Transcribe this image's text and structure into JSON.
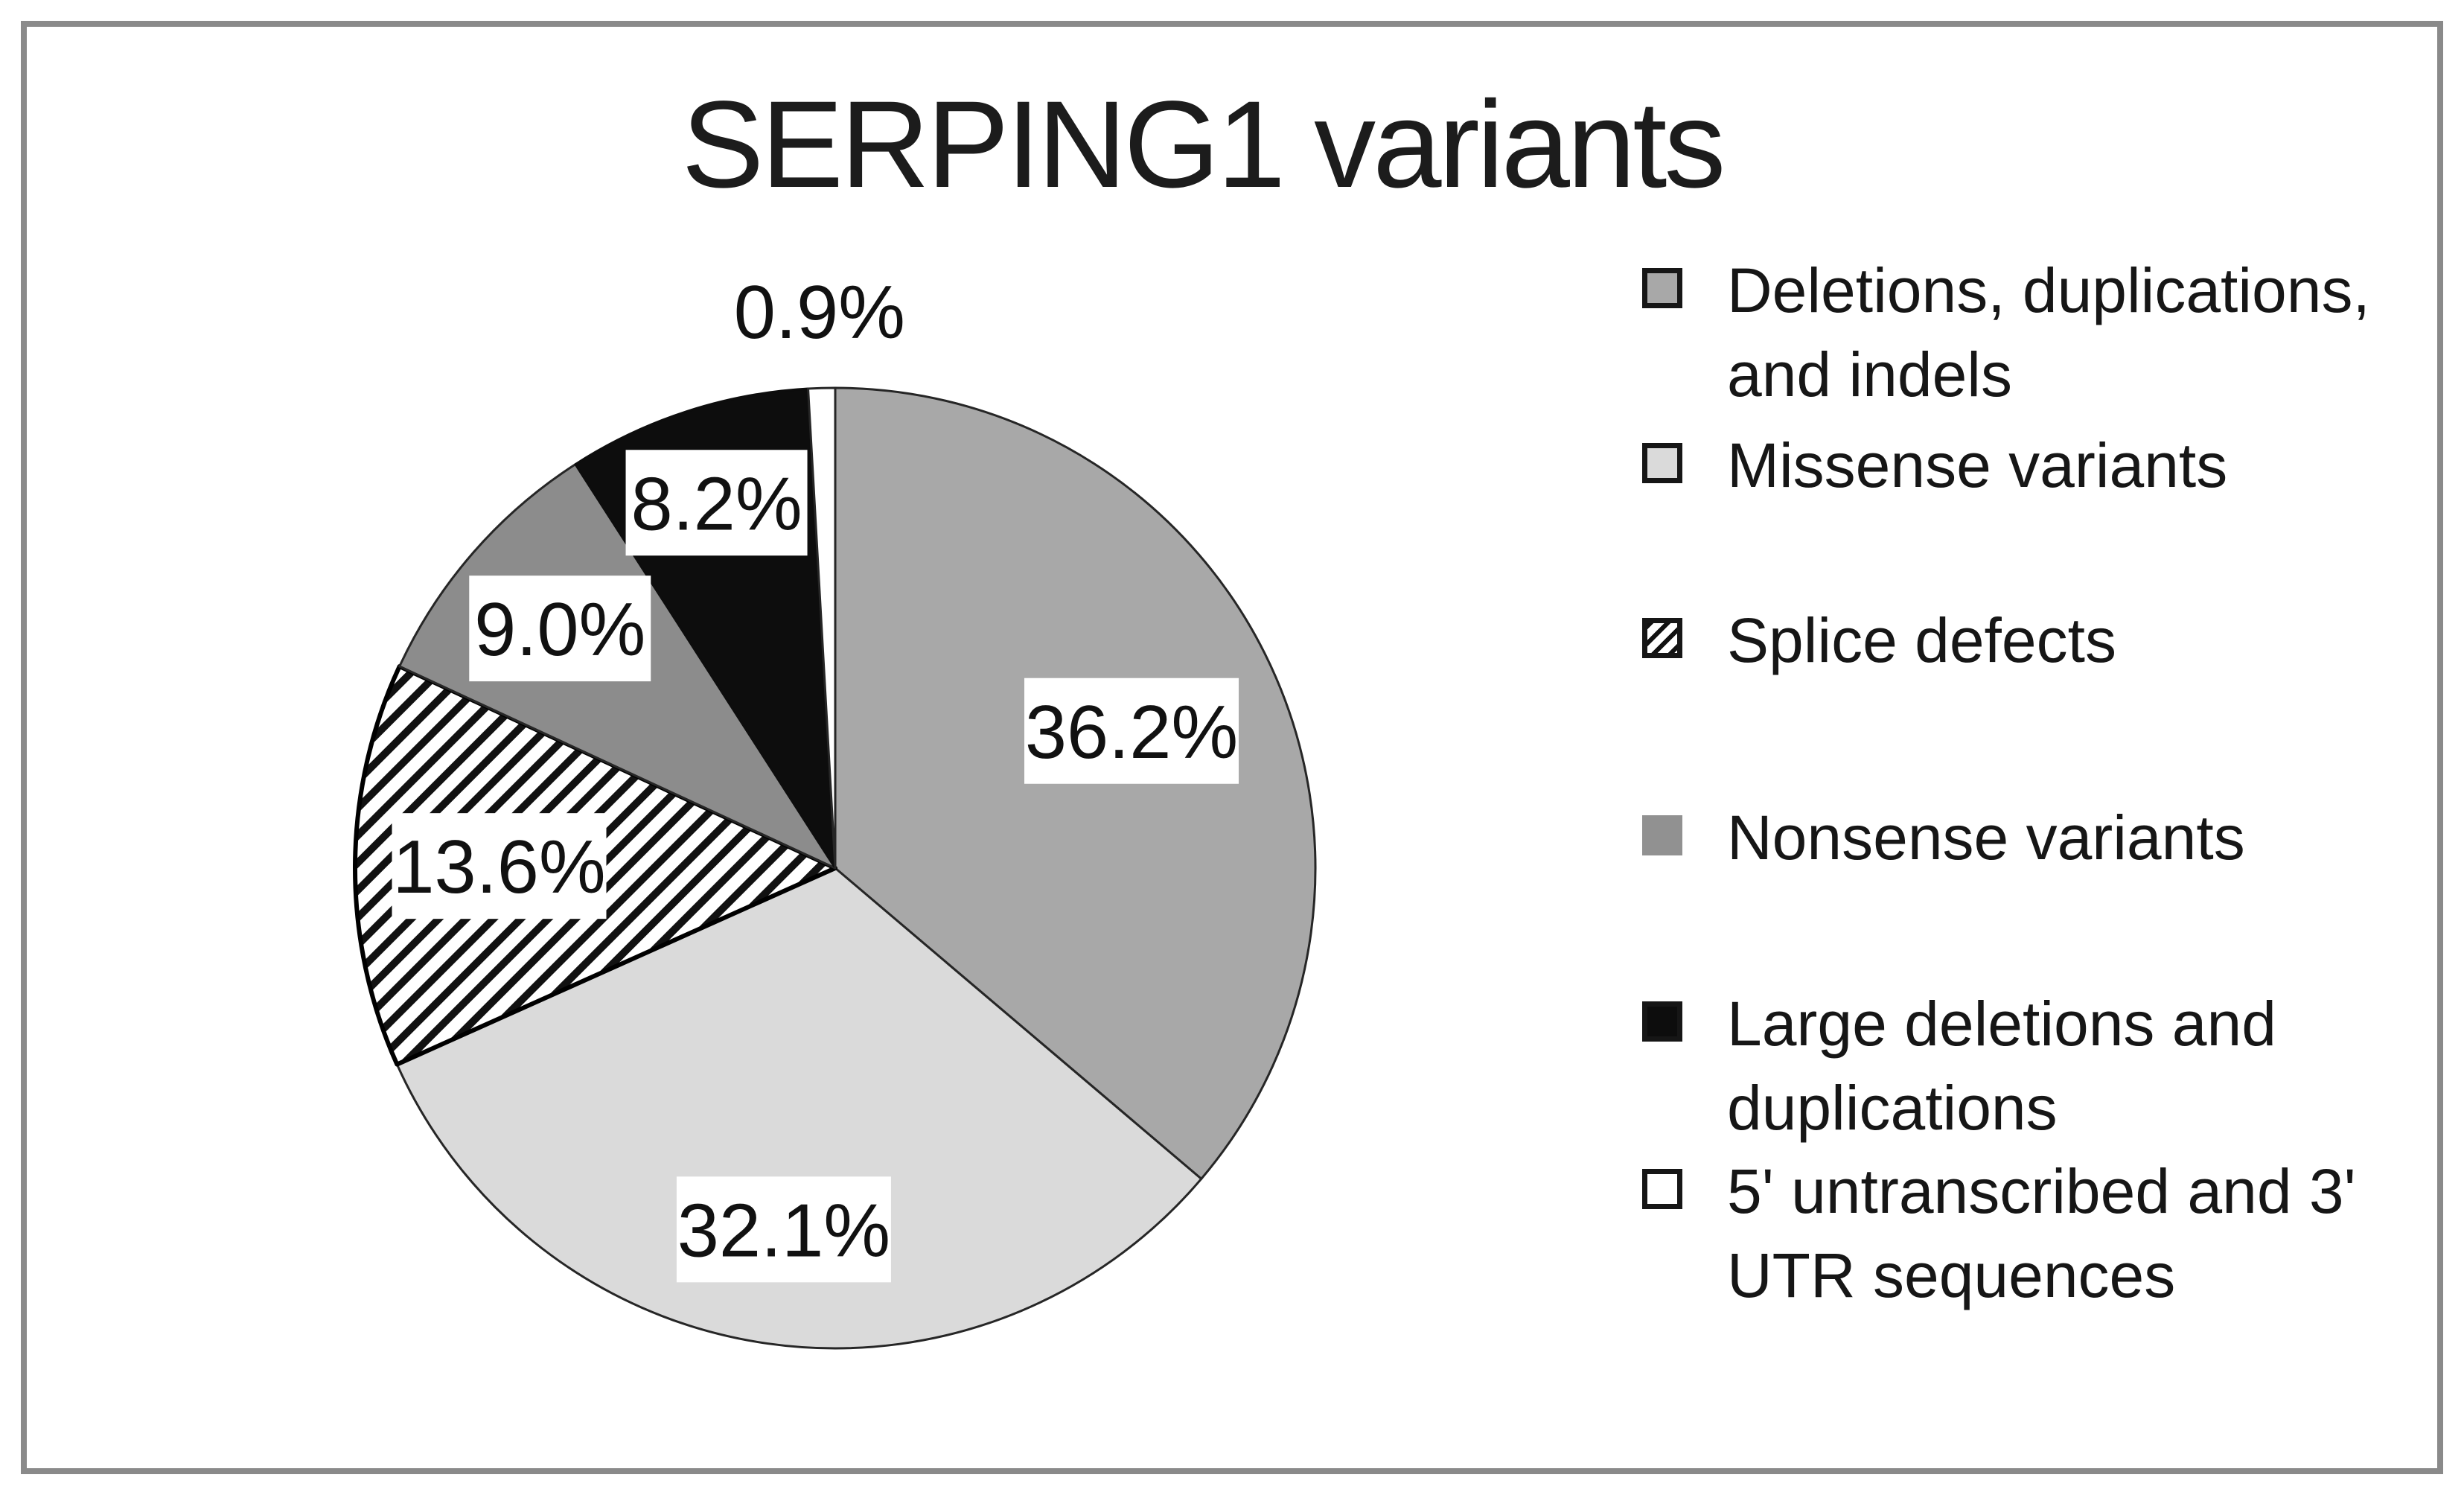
{
  "title": "SERPING1 variants",
  "chart_data": {
    "type": "pie",
    "title": "SERPING1 variants",
    "start_angle_deg": 0,
    "direction": "clockwise",
    "legend_position": "right",
    "total": 100,
    "slices": [
      {
        "label": "Deletions, duplications, and indels",
        "value": 36.2,
        "display": "36.2%",
        "fill": "#a8a8a8",
        "pattern": "solid",
        "stroke": "#262626",
        "stroke_width": 3,
        "label_r": 0.68,
        "label_box": true
      },
      {
        "label": "Missense variants",
        "value": 32.1,
        "display": "32.1%",
        "fill": "#dadada",
        "pattern": "solid",
        "stroke": "#262626",
        "stroke_width": 3,
        "label_r": 0.76,
        "label_box": true
      },
      {
        "label": "Splice defects",
        "value": 13.6,
        "display": "13.6%",
        "fill": "#ffffff",
        "pattern": "diagonal-hatch",
        "stroke": "#000000",
        "stroke_width": 6,
        "label_r": 0.7,
        "label_box": true
      },
      {
        "label": "Nonsense variants",
        "value": 9.0,
        "display": "9.0%",
        "fill": "#8c8c8c",
        "pattern": "solid",
        "stroke": "#262626",
        "stroke_width": 3,
        "label_r": 0.76,
        "label_box": true
      },
      {
        "label": "Large deletions and duplications",
        "value": 8.2,
        "display": "8.2%",
        "fill": "#0d0d0d",
        "pattern": "solid",
        "stroke": "#0d0d0d",
        "stroke_width": 3,
        "label_r": 0.8,
        "label_box": true
      },
      {
        "label": "5' untranscribed and 3' UTR sequences",
        "value": 0.9,
        "display": "0.9%",
        "fill": "#ffffff",
        "pattern": "solid",
        "stroke": "#262626",
        "stroke_width": 3,
        "label_r": 1.16,
        "label_box": false
      }
    ]
  },
  "legend": {
    "items": [
      {
        "lines": [
          "Deletions, duplications,",
          "and indels"
        ],
        "swatch_fill": "#a8a8a8",
        "swatch_border": true,
        "swatch_pattern": "solid"
      },
      {
        "lines": [
          "Missense variants"
        ],
        "swatch_fill": "#dadada",
        "swatch_border": true,
        "swatch_pattern": "solid"
      },
      {
        "lines": [
          "Splice defects"
        ],
        "swatch_fill": "#ffffff",
        "swatch_border": true,
        "swatch_pattern": "diagonal-hatch"
      },
      {
        "lines": [
          "Nonsense variants"
        ],
        "swatch_fill": "#919191",
        "swatch_border": false,
        "swatch_pattern": "solid"
      },
      {
        "lines": [
          "Large deletions and",
          "duplications"
        ],
        "swatch_fill": "#0d0d0d",
        "swatch_border": true,
        "swatch_pattern": "solid"
      },
      {
        "lines": [
          "5' untranscribed and 3'",
          "UTR sequences"
        ],
        "swatch_fill": "#ffffff",
        "swatch_border": true,
        "swatch_pattern": "solid"
      }
    ]
  },
  "colors": {
    "frame_border": "#8a8a8a",
    "title_text": "#1c1c1c",
    "label_text": "#111111",
    "label_box": "#ffffff",
    "hatch_line": "#111111"
  }
}
